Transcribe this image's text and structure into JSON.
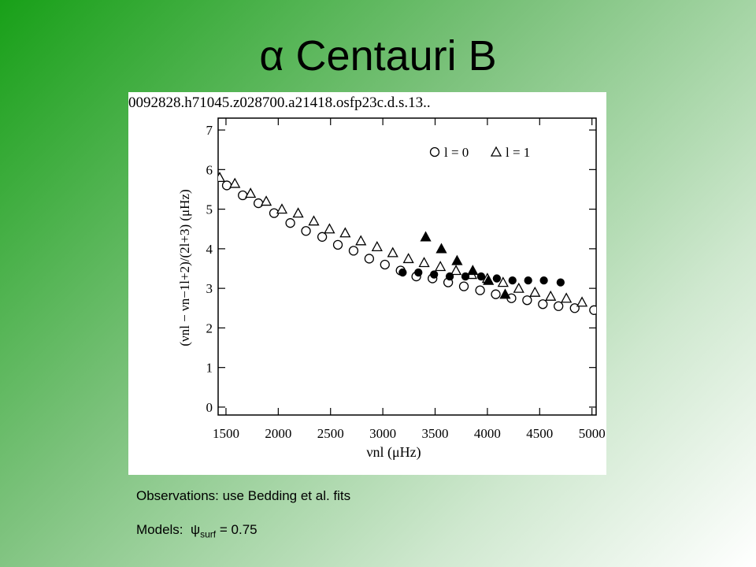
{
  "title": "α Centauri B",
  "notes": {
    "observations": "Observations: use Bedding et al. fits",
    "models_prefix": "Models:",
    "models_symbol": "ψ",
    "models_subscript": "surf",
    "models_suffix": "= 0.75"
  },
  "chart_data": {
    "type": "scatter",
    "annotation": "0092828.h71045.z028700.a21418.osfp23c.d.s.13..",
    "x_label": "νnl (μHz)",
    "y_label": "(νnl − νn−1l+2)/(2l+3) (μHz)",
    "xlim": [
      1425,
      5040
    ],
    "xticks": [
      1500,
      2000,
      2500,
      3000,
      3500,
      4000,
      4500,
      5000
    ],
    "ylim": [
      -0.2,
      7.3
    ],
    "yticks": [
      0,
      1,
      2,
      3,
      4,
      5,
      6,
      7
    ],
    "series": [
      {
        "name": "l = 0",
        "marker": "circle",
        "filled": false,
        "color": "#000000",
        "x": [
          1508,
          1660,
          1810,
          1960,
          2115,
          2265,
          2420,
          2570,
          2720,
          2870,
          3020,
          3170,
          3320,
          3475,
          3625,
          3775,
          3930,
          4080,
          4230,
          4380,
          4530,
          4680,
          4835,
          5020
        ],
        "values": [
          5.6,
          5.35,
          5.15,
          4.9,
          4.65,
          4.45,
          4.3,
          4.1,
          3.95,
          3.75,
          3.6,
          3.45,
          3.3,
          3.25,
          3.15,
          3.05,
          2.95,
          2.85,
          2.75,
          2.7,
          2.6,
          2.55,
          2.5,
          2.45
        ]
      },
      {
        "name": "l = 1",
        "marker": "triangle",
        "filled": false,
        "color": "#000000",
        "x": [
          1440,
          1585,
          1735,
          1885,
          2035,
          2190,
          2340,
          2490,
          2640,
          2790,
          2945,
          3095,
          3245,
          3395,
          3550,
          3700,
          3850,
          4000,
          4150,
          4300,
          4455,
          4605,
          4755,
          4905
        ],
        "values": [
          5.8,
          5.65,
          5.4,
          5.2,
          5.0,
          4.9,
          4.7,
          4.5,
          4.4,
          4.2,
          4.05,
          3.9,
          3.75,
          3.65,
          3.55,
          3.45,
          3.35,
          3.25,
          3.15,
          3.0,
          2.9,
          2.8,
          2.75,
          2.65
        ]
      },
      {
        "marker": "circle",
        "filled": true,
        "color": "#000000",
        "x": [
          3190,
          3340,
          3490,
          3640,
          3790,
          3940,
          4090,
          4240,
          4390,
          4540,
          4700
        ],
        "values": [
          3.4,
          3.4,
          3.35,
          3.3,
          3.3,
          3.3,
          3.25,
          3.2,
          3.2,
          3.2,
          3.15
        ]
      },
      {
        "marker": "triangle",
        "filled": true,
        "color": "#000000",
        "x": [
          3410,
          3560,
          3710,
          3860,
          4010,
          4170
        ],
        "values": [
          4.3,
          4.0,
          3.7,
          3.45,
          3.2,
          2.85
        ]
      }
    ]
  }
}
